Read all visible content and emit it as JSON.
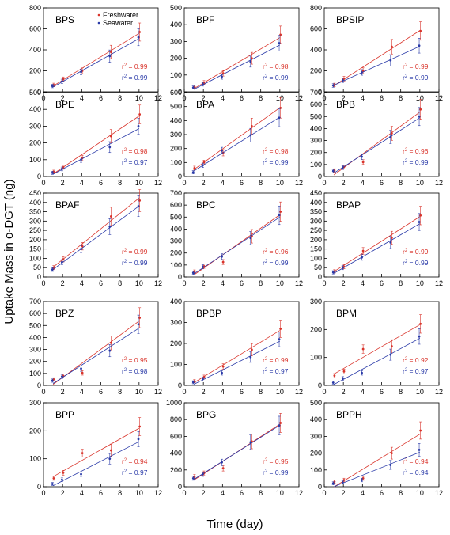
{
  "figure": {
    "ylabel": "Uptake Mass in o-DGT (ng)",
    "xlabel": "Time (day)",
    "legend": [
      "Freshwater",
      "Seawater"
    ],
    "colors": {
      "freshwater": "#d9342b",
      "seawater": "#2a3aa8",
      "axis": "#000000"
    }
  },
  "chart_data": [
    {
      "type": "scatter",
      "title": "BPS",
      "xlim": [
        0,
        12
      ],
      "ylim": [
        0,
        800
      ],
      "xticks": [
        0,
        2,
        4,
        6,
        8,
        10,
        12
      ],
      "yticks": [
        0,
        200,
        400,
        600,
        800
      ],
      "x": [
        1,
        2,
        4,
        7,
        10
      ],
      "series": [
        {
          "name": "Freshwater",
          "values": [
            65,
            120,
            200,
            380,
            570
          ],
          "r2": "0.99"
        },
        {
          "name": "Seawater",
          "values": [
            55,
            100,
            190,
            340,
            520
          ],
          "r2": "0.99"
        }
      ]
    },
    {
      "type": "scatter",
      "title": "BPF",
      "xlim": [
        0,
        12
      ],
      "ylim": [
        0,
        500
      ],
      "xticks": [
        0,
        2,
        4,
        6,
        8,
        10,
        12
      ],
      "yticks": [
        0,
        100,
        200,
        300,
        400,
        500
      ],
      "x": [
        1,
        2,
        4,
        7,
        10
      ],
      "series": [
        {
          "name": "Freshwater",
          "values": [
            30,
            55,
            110,
            200,
            340
          ],
          "r2": "0.98"
        },
        {
          "name": "Seawater",
          "values": [
            25,
            45,
            90,
            180,
            290
          ],
          "r2": "0.99"
        }
      ]
    },
    {
      "type": "scatter",
      "title": "BPSIP",
      "xlim": [
        0,
        12
      ],
      "ylim": [
        0,
        800
      ],
      "xticks": [
        0,
        2,
        4,
        6,
        8,
        10,
        12
      ],
      "yticks": [
        0,
        200,
        400,
        600,
        800
      ],
      "x": [
        1,
        2,
        4,
        7,
        10
      ],
      "series": [
        {
          "name": "Freshwater",
          "values": [
            65,
            125,
            200,
            430,
            580
          ],
          "r2": "0.99"
        },
        {
          "name": "Seawater",
          "values": [
            60,
            110,
            185,
            300,
            440
          ],
          "r2": "0.99"
        }
      ]
    },
    {
      "type": "scatter",
      "title": "BPE",
      "xlim": [
        0,
        12
      ],
      "ylim": [
        0,
        500
      ],
      "xticks": [
        0,
        2,
        4,
        6,
        8,
        10,
        12
      ],
      "yticks": [
        0,
        100,
        200,
        300,
        400,
        500
      ],
      "x": [
        1,
        2,
        4,
        7,
        10
      ],
      "series": [
        {
          "name": "Freshwater",
          "values": [
            28,
            55,
            110,
            240,
            370
          ],
          "r2": "0.98"
        },
        {
          "name": "Seawater",
          "values": [
            22,
            45,
            100,
            175,
            300
          ],
          "r2": "0.97"
        }
      ]
    },
    {
      "type": "scatter",
      "title": "BPA",
      "xlim": [
        0,
        12
      ],
      "ylim": [
        0,
        600
      ],
      "xticks": [
        0,
        2,
        4,
        6,
        8,
        10,
        12
      ],
      "yticks": [
        0,
        100,
        200,
        300,
        400,
        500,
        600
      ],
      "x": [
        1,
        2,
        4,
        7,
        10
      ],
      "series": [
        {
          "name": "Freshwater",
          "values": [
            60,
            100,
            170,
            360,
            490
          ],
          "r2": "0.98"
        },
        {
          "name": "Seawater",
          "values": [
            30,
            80,
            185,
            295,
            420
          ],
          "r2": "0.99"
        }
      ]
    },
    {
      "type": "scatter",
      "title": "BPB",
      "xlim": [
        0,
        12
      ],
      "ylim": [
        0,
        700
      ],
      "xticks": [
        0,
        2,
        4,
        6,
        8,
        10,
        12
      ],
      "yticks": [
        0,
        100,
        200,
        300,
        400,
        500,
        600,
        700
      ],
      "x": [
        1,
        2,
        4,
        7,
        10
      ],
      "series": [
        {
          "name": "Freshwater",
          "values": [
            50,
            80,
            120,
            360,
            560
          ],
          "r2": "0.96"
        },
        {
          "name": "Seawater",
          "values": [
            45,
            75,
            165,
            330,
            500
          ],
          "r2": "0.99"
        }
      ]
    },
    {
      "type": "scatter",
      "title": "BPAF",
      "xlim": [
        0,
        12
      ],
      "ylim": [
        0,
        450
      ],
      "xticks": [
        0,
        2,
        4,
        6,
        8,
        10,
        12
      ],
      "yticks": [
        0,
        50,
        100,
        150,
        200,
        250,
        300,
        350,
        400,
        450
      ],
      "x": [
        1,
        2,
        4,
        7,
        10
      ],
      "series": [
        {
          "name": "Freshwater",
          "values": [
            50,
            95,
            165,
            325,
            410
          ],
          "r2": "0.99"
        },
        {
          "name": "Seawater",
          "values": [
            40,
            80,
            150,
            270,
            380
          ],
          "r2": "0.99"
        }
      ]
    },
    {
      "type": "scatter",
      "title": "BPC",
      "xlim": [
        0,
        12
      ],
      "ylim": [
        0,
        700
      ],
      "xticks": [
        0,
        2,
        4,
        6,
        8,
        10,
        12
      ],
      "yticks": [
        0,
        100,
        200,
        300,
        400,
        500,
        600,
        700
      ],
      "x": [
        1,
        2,
        4,
        7,
        10
      ],
      "series": [
        {
          "name": "Freshwater",
          "values": [
            45,
            90,
            125,
            340,
            545
          ],
          "r2": "0.96"
        },
        {
          "name": "Seawater",
          "values": [
            35,
            85,
            170,
            325,
            515
          ],
          "r2": "0.99"
        }
      ]
    },
    {
      "type": "scatter",
      "title": "BPAP",
      "xlim": [
        0,
        12
      ],
      "ylim": [
        0,
        450
      ],
      "xticks": [
        0,
        2,
        4,
        6,
        8,
        10,
        12
      ],
      "yticks": [
        0,
        50,
        100,
        150,
        200,
        250,
        300,
        350,
        400,
        450
      ],
      "x": [
        1,
        2,
        4,
        7,
        10
      ],
      "series": [
        {
          "name": "Freshwater",
          "values": [
            30,
            55,
            140,
            210,
            330
          ],
          "r2": "0.99"
        },
        {
          "name": "Seawater",
          "values": [
            25,
            50,
            105,
            185,
            295
          ],
          "r2": "0.99"
        }
      ]
    },
    {
      "type": "scatter",
      "title": "BPZ",
      "xlim": [
        0,
        12
      ],
      "ylim": [
        0,
        700
      ],
      "xticks": [
        0,
        2,
        4,
        6,
        8,
        10,
        12
      ],
      "yticks": [
        0,
        100,
        200,
        300,
        400,
        500,
        600,
        700
      ],
      "x": [
        1,
        2,
        4,
        7,
        10
      ],
      "series": [
        {
          "name": "Freshwater",
          "values": [
            50,
            80,
            105,
            355,
            565
          ],
          "r2": "0.95"
        },
        {
          "name": "Seawater",
          "values": [
            40,
            75,
            140,
            290,
            510
          ],
          "r2": "0.98"
        }
      ]
    },
    {
      "type": "scatter",
      "title": "BPBP",
      "xlim": [
        0,
        12
      ],
      "ylim": [
        0,
        400
      ],
      "xticks": [
        0,
        2,
        4,
        6,
        8,
        10,
        12
      ],
      "yticks": [
        0,
        100,
        200,
        300,
        400
      ],
      "x": [
        1,
        2,
        4,
        7,
        10
      ],
      "series": [
        {
          "name": "Freshwater",
          "values": [
            20,
            40,
            90,
            170,
            270
          ],
          "r2": "0.99"
        },
        {
          "name": "Seawater",
          "values": [
            15,
            30,
            60,
            135,
            220
          ],
          "r2": "0.97"
        }
      ]
    },
    {
      "type": "scatter",
      "title": "BPM",
      "xlim": [
        0,
        12
      ],
      "ylim": [
        0,
        300
      ],
      "xticks": [
        0,
        2,
        4,
        6,
        8,
        10,
        12
      ],
      "yticks": [
        0,
        100,
        200,
        300
      ],
      "x": [
        1,
        2,
        4,
        7,
        10
      ],
      "series": [
        {
          "name": "Freshwater",
          "values": [
            35,
            50,
            130,
            140,
            220
          ],
          "r2": "0.92"
        },
        {
          "name": "Seawater",
          "values": [
            10,
            25,
            45,
            110,
            175
          ],
          "r2": "0.97"
        }
      ]
    },
    {
      "type": "scatter",
      "title": "BPP",
      "xlim": [
        0,
        12
      ],
      "ylim": [
        0,
        300
      ],
      "xticks": [
        0,
        2,
        4,
        6,
        8,
        10,
        12
      ],
      "yticks": [
        0,
        100,
        200,
        300
      ],
      "x": [
        1,
        2,
        4,
        7,
        10
      ],
      "series": [
        {
          "name": "Freshwater",
          "values": [
            30,
            50,
            120,
            130,
            215
          ],
          "r2": "0.94"
        },
        {
          "name": "Seawater",
          "values": [
            10,
            25,
            45,
            100,
            170
          ],
          "r2": "0.97"
        }
      ]
    },
    {
      "type": "scatter",
      "title": "BPG",
      "xlim": [
        0,
        12
      ],
      "ylim": [
        0,
        1000
      ],
      "xticks": [
        0,
        2,
        4,
        6,
        8,
        10,
        12
      ],
      "yticks": [
        0,
        200,
        400,
        600,
        800,
        1000
      ],
      "x": [
        1,
        2,
        4,
        7,
        10
      ],
      "series": [
        {
          "name": "Freshwater",
          "values": [
            120,
            160,
            220,
            540,
            760
          ],
          "r2": "0.95"
        },
        {
          "name": "Seawater",
          "values": [
            100,
            150,
            290,
            530,
            730
          ],
          "r2": "0.99"
        }
      ]
    },
    {
      "type": "scatter",
      "title": "BPPH",
      "xlim": [
        0,
        12
      ],
      "ylim": [
        0,
        500
      ],
      "xticks": [
        0,
        2,
        4,
        6,
        8,
        10,
        12
      ],
      "yticks": [
        0,
        100,
        200,
        300,
        400,
        500
      ],
      "x": [
        1,
        2,
        4,
        7,
        10
      ],
      "series": [
        {
          "name": "Freshwater",
          "values": [
            30,
            40,
            50,
            200,
            335
          ],
          "r2": "0.94"
        },
        {
          "name": "Seawater",
          "values": [
            20,
            25,
            40,
            130,
            220
          ],
          "r2": "0.94"
        }
      ]
    }
  ]
}
